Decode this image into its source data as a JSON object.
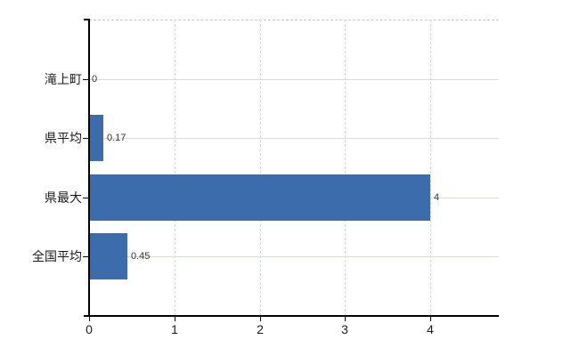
{
  "chart_data": {
    "type": "bar",
    "orientation": "horizontal",
    "title": "",
    "categories": [
      "滝上町",
      "県平均",
      "県最大",
      "全国平均"
    ],
    "values": [
      0,
      0.17,
      4,
      0.45
    ],
    "value_labels": [
      "0",
      "0.17",
      "4",
      "0.45"
    ],
    "x_tick_labels": [
      "0",
      "1",
      "2",
      "3",
      "4"
    ],
    "x_tick_values": [
      0,
      1,
      2,
      3,
      4
    ],
    "xlim": [
      0,
      4.8
    ],
    "grid": true,
    "legend_position": "none",
    "bar_color": "#3d6cad"
  },
  "colors": {
    "bar": "#3d6cad",
    "h_grid": "#d6ded6",
    "v_grid": "#d8d8dc",
    "plot_border_dashed": "#c9c9c9",
    "axis": "#000000",
    "category_text": "#1a1a1a",
    "tick_text": "#1a1a1a",
    "value_text": "#333333",
    "background": "#ffffff"
  }
}
